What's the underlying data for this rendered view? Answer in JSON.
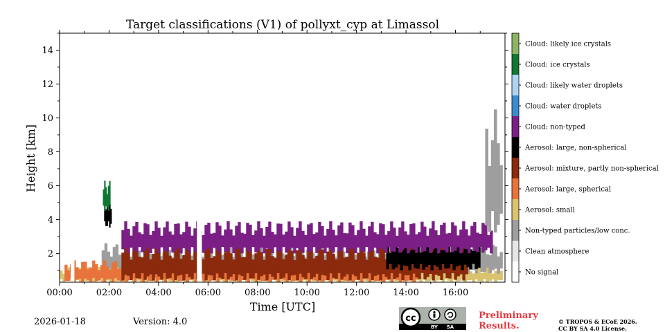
{
  "chart_data": {
    "type": "heatmap",
    "title": "Target classifications (V1) of pollyxt_cyp at Limassol",
    "xlabel": "Time [UTC]",
    "ylabel": "Height [km]",
    "xlim": [
      0,
      18
    ],
    "ylim": [
      0.3,
      15.0
    ],
    "xticks": [
      {
        "value": 0,
        "label": "00:00"
      },
      {
        "value": 2,
        "label": "02:00"
      },
      {
        "value": 4,
        "label": "04:00"
      },
      {
        "value": 6,
        "label": "06:00"
      },
      {
        "value": 8,
        "label": "08:00"
      },
      {
        "value": 10,
        "label": "10:00"
      },
      {
        "value": 12,
        "label": "12:00"
      },
      {
        "value": 14,
        "label": "14:00"
      },
      {
        "value": 16,
        "label": "16:00"
      }
    ],
    "yticks": [
      {
        "value": 2,
        "label": "2"
      },
      {
        "value": 4,
        "label": "4"
      },
      {
        "value": 6,
        "label": "6"
      },
      {
        "value": 8,
        "label": "8"
      },
      {
        "value": 10,
        "label": "10"
      },
      {
        "value": 12,
        "label": "12"
      },
      {
        "value": 14,
        "label": "14"
      }
    ],
    "legend": [
      {
        "label": "Cloud: likely ice crystals",
        "color": "#8db465"
      },
      {
        "label": "Cloud: ice crystals",
        "color": "#117733"
      },
      {
        "label": "Cloud: likely water droplets",
        "color": "#aed4f2"
      },
      {
        "label": "Cloud: water droplets",
        "color": "#3b8ccc"
      },
      {
        "label": "Cloud: non-typed",
        "color": "#7b1f86"
      },
      {
        "label": "Aerosol: large, non-spherical",
        "color": "#000000"
      },
      {
        "label": "Aerosol: mixture, partly non-spherical",
        "color": "#8b2a0c"
      },
      {
        "label": "Aerosol: large, spherical",
        "color": "#e8743b"
      },
      {
        "label": "Aerosol: small",
        "color": "#d9c36e"
      },
      {
        "label": "Non-typed particles/low conc.",
        "color": "#9e9e9e"
      },
      {
        "label": "Clean atmosphere",
        "color": "#e6e6e6"
      },
      {
        "label": "No signal",
        "color": "#ffffff"
      }
    ],
    "classes_present": [
      {
        "class": "Aerosol: small",
        "t_start": 0.0,
        "t_end": 17.9,
        "h_bottom": 0.3,
        "h_top": 1.2
      },
      {
        "class": "Non-typed particles/low conc.",
        "t_start": 1.7,
        "t_end": 17.9,
        "h_bottom": 0.8,
        "h_top": 2.6
      },
      {
        "class": "Aerosol: large, spherical",
        "t_start": 0.2,
        "t_end": 14.5,
        "h_bottom": 0.3,
        "h_top": 1.6
      },
      {
        "class": "Aerosol: mixture, partly non-spherical",
        "t_start": 2.5,
        "t_end": 16.5,
        "h_bottom": 0.4,
        "h_top": 2.6
      },
      {
        "class": "Aerosol: large, non-spherical",
        "t_start": 13.2,
        "t_end": 17.0,
        "h_bottom": 1.0,
        "h_top": 2.9
      },
      {
        "class": "Cloud: non-typed",
        "t_start": 2.5,
        "t_end": 17.5,
        "h_bottom": 2.0,
        "h_top": 3.9
      },
      {
        "class": "Aerosol: large, non-spherical",
        "t_start": 1.8,
        "t_end": 2.1,
        "h_bottom": 3.5,
        "h_top": 5.5
      },
      {
        "class": "Cloud: ice crystals",
        "t_start": 1.75,
        "t_end": 2.05,
        "h_bottom": 4.5,
        "h_top": 6.3
      },
      {
        "class": "Non-typed particles/low conc.",
        "t_start": 17.2,
        "t_end": 17.9,
        "h_bottom": 3.0,
        "h_top": 10.5
      }
    ],
    "data_gaps": [
      {
        "t_start": 0.45,
        "t_end": 0.6
      },
      {
        "t_start": 5.55,
        "t_end": 5.75
      }
    ]
  },
  "footer": {
    "date": "2026-01-18",
    "version": "Version: 4.0",
    "license_badge": {
      "cc": "cc",
      "by": "BY",
      "sa": "SA"
    },
    "preliminary_line1": "Preliminary",
    "preliminary_line2": "Results.",
    "copyright_line1": "© TROPOS & ECoE 2026.",
    "copyright_line2": "CC BY SA 4.0 License."
  }
}
